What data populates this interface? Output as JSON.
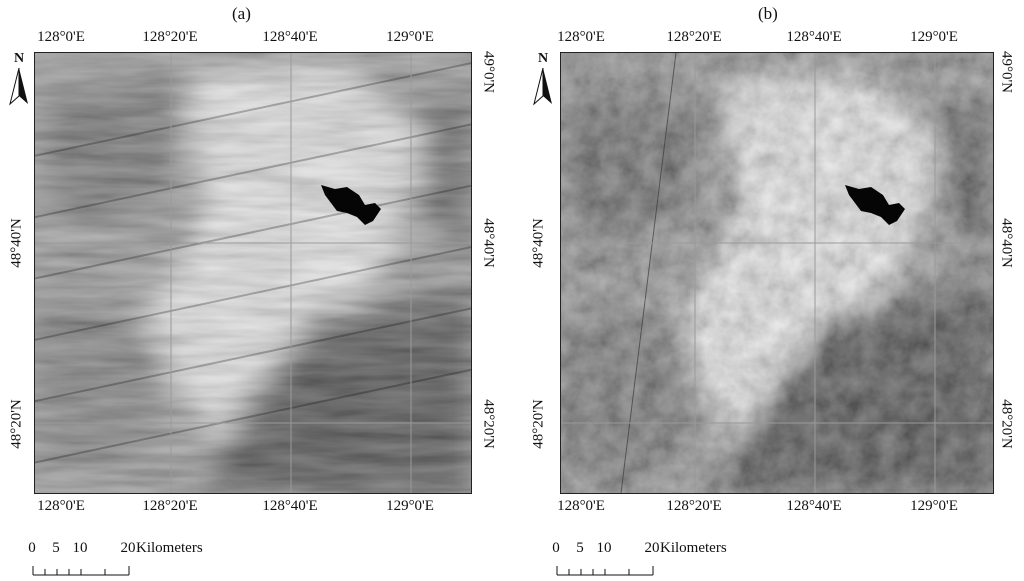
{
  "panels": [
    {
      "label": "(a)",
      "lon_ticks": [
        "128°0'E",
        "128°20'E",
        "128°40'E",
        "129°0'E"
      ],
      "lat_ticks": [
        "49°0'N",
        "48°40'N",
        "48°20'N"
      ],
      "north_arrow": "N",
      "scale": {
        "numbers": [
          "0",
          "5",
          "10",
          "20"
        ],
        "unit": "Kilometers"
      }
    },
    {
      "label": "(b)",
      "lon_ticks": [
        "128°0'E",
        "128°20'E",
        "128°40'E",
        "129°0'E"
      ],
      "lat_ticks": [
        "49°0'N",
        "48°40'N",
        "48°20'N"
      ],
      "north_arrow": "N",
      "scale": {
        "numbers": [
          "0",
          "5",
          "10",
          "20"
        ],
        "unit": "Kilometers"
      }
    }
  ],
  "icons": {
    "north": "north-arrow-icon"
  },
  "colors": {
    "water": "#050505",
    "bright_land": "#e6e6e6",
    "dark_land": "#2a2a2a",
    "grid": "#9a9a9a"
  }
}
